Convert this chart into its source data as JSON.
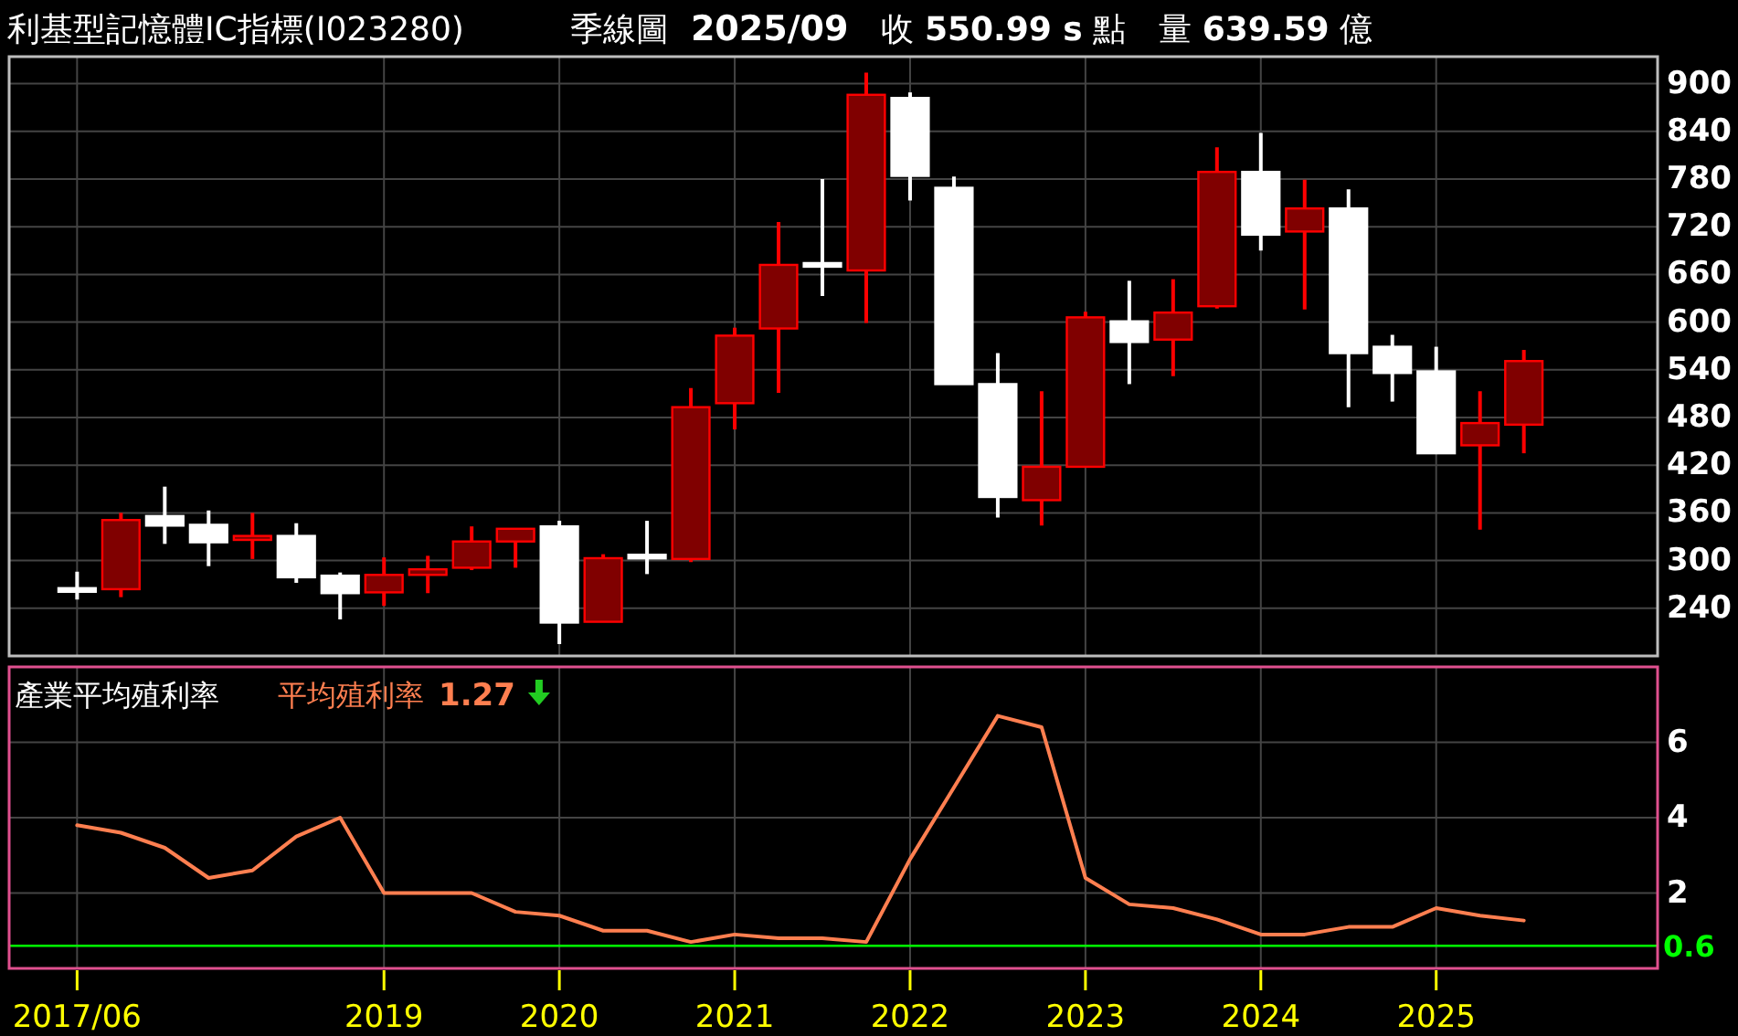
{
  "chart_data": [
    {
      "type": "candlestick",
      "title": "利基型記憶體IC指標(I023280)",
      "subtitle": "季線圖",
      "annotations": [
        "2025/09",
        "收 **550.99 s** 點",
        "量 **639.59** 億"
      ],
      "categories": [
        "2017/06",
        null,
        null,
        null,
        null,
        null,
        null,
        "2019",
        null,
        null,
        null,
        "2020",
        null,
        null,
        null,
        "2021",
        null,
        null,
        null,
        "2022",
        null,
        null,
        null,
        "2023",
        null,
        null,
        null,
        "2024",
        null,
        null,
        null,
        "2025",
        null,
        null
      ],
      "ohlc": [
        [
          263,
          286,
          251,
          263
        ],
        [
          264,
          360,
          254,
          351
        ],
        [
          356,
          393,
          321,
          344
        ],
        [
          345,
          363,
          293,
          323
        ],
        [
          326,
          360,
          302,
          331
        ],
        [
          331,
          347,
          272,
          279
        ],
        [
          281,
          285,
          226,
          259
        ],
        [
          260,
          304,
          243,
          282
        ],
        [
          282,
          306,
          259,
          289
        ],
        [
          291,
          343,
          288,
          324
        ],
        [
          324,
          340,
          291,
          340
        ],
        [
          343,
          350,
          195,
          222
        ],
        [
          223,
          308,
          223,
          303
        ],
        [
          305,
          350,
          283,
          305
        ],
        [
          302,
          517,
          298,
          493
        ],
        [
          498,
          593,
          465,
          583
        ],
        [
          592,
          726,
          511,
          672
        ],
        [
          672,
          780,
          633,
          672
        ],
        [
          665,
          914,
          599,
          886
        ],
        [
          882,
          889,
          753,
          784
        ],
        [
          769,
          783,
          522,
          522
        ],
        [
          522,
          561,
          354,
          380
        ],
        [
          376,
          513,
          344,
          418
        ],
        [
          418,
          613,
          418,
          606
        ],
        [
          601,
          652,
          522,
          575
        ],
        [
          578,
          654,
          532,
          612
        ],
        [
          620,
          820,
          617,
          789
        ],
        [
          789,
          838,
          690,
          710
        ],
        [
          714,
          779,
          616,
          743
        ],
        [
          743,
          767,
          493,
          561
        ],
        [
          569,
          584,
          500,
          536
        ],
        [
          538,
          569,
          435,
          435
        ],
        [
          445,
          513,
          339,
          473
        ],
        [
          471,
          565,
          435,
          550.99
        ]
      ],
      "colors": [
        "#ffffff",
        "#800000",
        "#ffffff",
        "#ffffff",
        "#800000",
        "#ffffff",
        "#ffffff",
        "#800000",
        "#800000",
        "#800000",
        "#800000",
        "#ffffff",
        "#800000",
        "#ffffff",
        "#800000",
        "#800000",
        "#800000",
        "#ffffff",
        "#800000",
        "#ffffff",
        "#ffffff",
        "#ffffff",
        "#800000",
        "#800000",
        "#ffffff",
        "#800000",
        "#800000",
        "#ffffff",
        "#800000",
        "#ffffff",
        "#ffffff",
        "#ffffff",
        "#800000",
        "#800000"
      ],
      "ylim": [
        180,
        934
      ],
      "yticks": [
        240,
        300,
        360,
        420,
        480,
        540,
        600,
        660,
        720,
        780,
        840,
        900
      ],
      "grid": true,
      "tick_labels": "y"
    },
    {
      "type": "line",
      "title": "產業平均殖利率",
      "annotations": [
        "1.27"
      ],
      "legend": "top left",
      "categories": [
        "2017/06",
        null,
        null,
        null,
        null,
        null,
        null,
        "2019",
        null,
        null,
        null,
        "2020",
        null,
        null,
        null,
        "2021",
        null,
        null,
        null,
        "2022",
        null,
        null,
        null,
        "2023",
        null,
        null,
        null,
        "2024",
        null,
        null,
        null,
        "2025",
        null,
        null
      ],
      "series": [
        {
          "name": "平均殖利率",
          "color": "#ff7f50",
          "values": [
            3.8,
            3.6,
            3.2,
            2.4,
            2.6,
            3.5,
            4.0,
            2.0,
            2.0,
            2.0,
            1.5,
            1.4,
            1.0,
            1.0,
            0.7,
            0.9,
            0.8,
            0.8,
            0.7,
            2.9,
            4.8,
            6.7,
            6.4,
            2.4,
            1.7,
            1.6,
            1.3,
            0.9,
            0.9,
            1.1,
            1.1,
            1.6,
            1.4,
            1.27
          ]
        }
      ],
      "ylim": [
        0,
        8
      ],
      "yticks": [
        {
          "value": 0.6,
          "label": "0.6"
        },
        2,
        4,
        6
      ],
      "grid": true,
      "ref_lines": [
        {
          "axis": "y",
          "value": 0.6,
          "color": "#00ff00"
        }
      ]
    }
  ]
}
